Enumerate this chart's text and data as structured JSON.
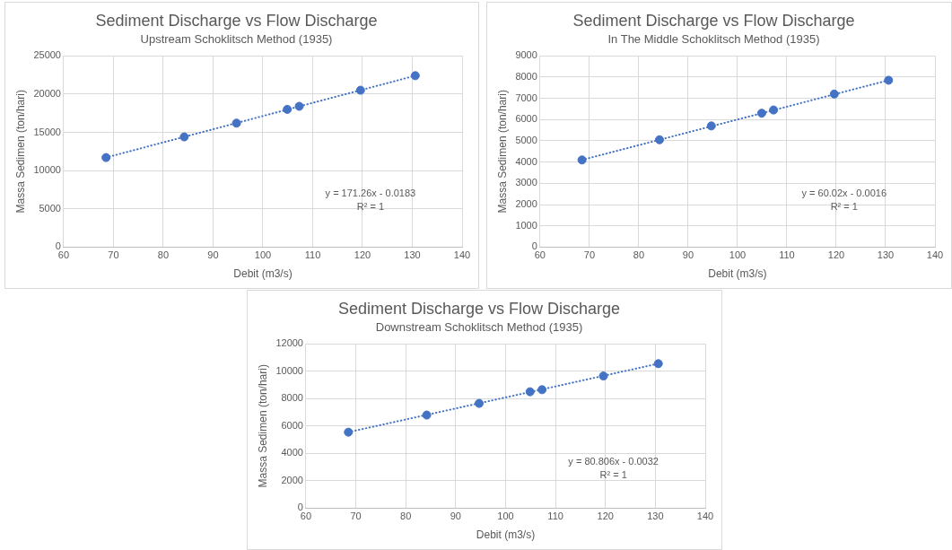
{
  "chart_data": [
    {
      "type": "scatter",
      "title": "Sediment Discharge vs Flow Discharge",
      "subtitle": "Upstream Schoklitsch Method (1935)",
      "xlabel": "Debit (m3/s)",
      "ylabel": "Massa Sedimen (ton/hari)",
      "xlim": [
        60,
        140
      ],
      "xticks": [
        60,
        70,
        80,
        90,
        100,
        110,
        120,
        130,
        140
      ],
      "ylim": [
        0,
        25000
      ],
      "yticks": [
        0,
        5000,
        10000,
        15000,
        20000,
        25000
      ],
      "grid": true,
      "legend": false,
      "annotations": [
        "y = 171.26x - 0.0183",
        "R² = 1"
      ],
      "series": [
        {
          "type": "scatter",
          "marker": "circle",
          "color": "#4472c4",
          "x": [
            68.5,
            84.2,
            94.7,
            104.9,
            107.3,
            119.6,
            130.6
          ],
          "values": [
            11700,
            14400,
            16200,
            18000,
            18400,
            20500,
            22400
          ]
        },
        {
          "type": "line",
          "marker": "none",
          "color": "#4472c4",
          "line_style": "dotted",
          "x": [
            68.5,
            130.6
          ],
          "values": [
            11700,
            22400
          ]
        }
      ]
    },
    {
      "type": "scatter",
      "title": "Sediment Discharge vs Flow Discharge",
      "subtitle": "In The Middle Schoklitsch Method (1935)",
      "xlabel": "Debit (m3/s)",
      "ylabel": "Massa Sedimen (ton/hari)",
      "xlim": [
        60,
        140
      ],
      "xticks": [
        60,
        70,
        80,
        90,
        100,
        110,
        120,
        130,
        140
      ],
      "ylim": [
        0,
        9000
      ],
      "yticks": [
        0,
        1000,
        2000,
        3000,
        4000,
        5000,
        6000,
        7000,
        8000,
        9000
      ],
      "grid": true,
      "legend": false,
      "annotations": [
        "y = 60.02x - 0.0016",
        "R² = 1"
      ],
      "series": [
        {
          "type": "scatter",
          "marker": "circle",
          "color": "#4472c4",
          "x": [
            68.5,
            84.2,
            94.7,
            104.9,
            107.3,
            119.6,
            130.6
          ],
          "values": [
            4100,
            5050,
            5700,
            6300,
            6450,
            7200,
            7850
          ]
        },
        {
          "type": "line",
          "marker": "none",
          "color": "#4472c4",
          "line_style": "dotted",
          "x": [
            68.5,
            130.6
          ],
          "values": [
            4100,
            7850
          ]
        }
      ]
    },
    {
      "type": "scatter",
      "title": "Sediment Discharge vs Flow Discharge",
      "subtitle": "Downstream Schoklitsch Method (1935)",
      "xlabel": "Debit (m3/s)",
      "ylabel": "Massa Sedimen (ton/hari)",
      "xlim": [
        60,
        140
      ],
      "xticks": [
        60,
        70,
        80,
        90,
        100,
        110,
        120,
        130,
        140
      ],
      "ylim": [
        0,
        12000
      ],
      "yticks": [
        0,
        2000,
        4000,
        6000,
        8000,
        10000,
        12000
      ],
      "grid": true,
      "legend": false,
      "annotations": [
        "y = 80.806x - 0.0032",
        "R² = 1"
      ],
      "series": [
        {
          "type": "scatter",
          "marker": "circle",
          "color": "#4472c4",
          "x": [
            68.5,
            84.2,
            94.7,
            104.9,
            107.3,
            119.6,
            130.6
          ],
          "values": [
            5550,
            6800,
            7650,
            8500,
            8650,
            9650,
            10550
          ]
        },
        {
          "type": "line",
          "marker": "none",
          "color": "#4472c4",
          "line_style": "dotted",
          "x": [
            68.5,
            130.6
          ],
          "values": [
            5550,
            10550
          ]
        }
      ]
    }
  ]
}
